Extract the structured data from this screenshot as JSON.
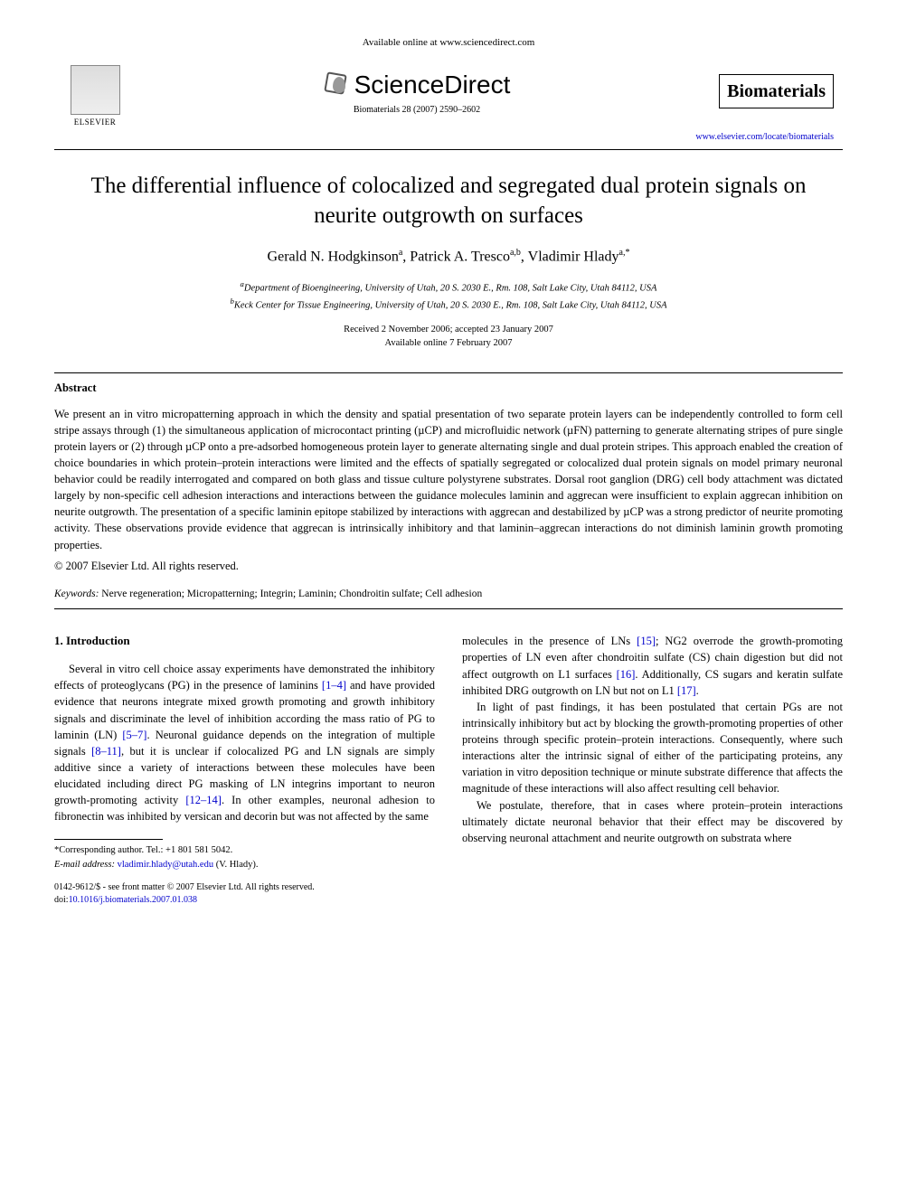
{
  "header": {
    "available_online": "Available online at www.sciencedirect.com",
    "sciencedirect": "ScienceDirect",
    "elsevier": "ELSEVIER",
    "citation": "Biomaterials 28 (2007) 2590–2602",
    "journal_name": "Biomaterials",
    "journal_url": "www.elsevier.com/locate/biomaterials"
  },
  "title": "The differential influence of colocalized and segregated dual protein signals on neurite outgrowth on surfaces",
  "authors_html": "Gerald N. Hodgkinson",
  "author1": "Gerald N. Hodgkinson",
  "author1_sup": "a",
  "author2": "Patrick A. Tresco",
  "author2_sup": "a,b",
  "author3": "Vladimir Hlady",
  "author3_sup": "a,*",
  "affiliations": {
    "a": "Department of Bioengineering, University of Utah, 20 S. 2030 E., Rm. 108, Salt Lake City, Utah 84112, USA",
    "b": "Keck Center for Tissue Engineering, University of Utah, 20 S. 2030 E., Rm. 108, Salt Lake City, Utah 84112, USA"
  },
  "dates": {
    "received_accepted": "Received 2 November 2006; accepted 23 January 2007",
    "online": "Available online 7 February 2007"
  },
  "abstract": {
    "heading": "Abstract",
    "body": "We present an in vitro micropatterning approach in which the density and spatial presentation of two separate protein layers can be independently controlled to form cell stripe assays through (1) the simultaneous application of microcontact printing (µCP) and microfluidic network (µFN) patterning to generate alternating stripes of pure single protein layers or (2) through µCP onto a pre-adsorbed homogeneous protein layer to generate alternating single and dual protein stripes. This approach enabled the creation of choice boundaries in which protein–protein interactions were limited and the effects of spatially segregated or colocalized dual protein signals on model primary neuronal behavior could be readily interrogated and compared on both glass and tissue culture polystyrene substrates. Dorsal root ganglion (DRG) cell body attachment was dictated largely by non-specific cell adhesion interactions and interactions between the guidance molecules laminin and aggrecan were insufficient to explain aggrecan inhibition on neurite outgrowth. The presentation of a specific laminin epitope stabilized by interactions with aggrecan and destabilized by µCP was a strong predictor of neurite promoting activity. These observations provide evidence that aggrecan is intrinsically inhibitory and that laminin–aggrecan interactions do not diminish laminin growth promoting properties.",
    "copyright": "© 2007 Elsevier Ltd. All rights reserved."
  },
  "keywords": {
    "label": "Keywords:",
    "list": "Nerve regeneration; Micropatterning; Integrin; Laminin; Chondroitin sulfate; Cell adhesion"
  },
  "intro": {
    "heading": "1. Introduction",
    "p1a": "Several in vitro cell choice assay experiments have demonstrated the inhibitory effects of proteoglycans (PG) in the presence of laminins ",
    "c1": "[1–4]",
    "p1b": " and have provided evidence that neurons integrate mixed growth promoting and growth inhibitory signals and discriminate the level of inhibition according the mass ratio of PG to laminin (LN) ",
    "c2": "[5–7]",
    "p1c": ". Neuronal guidance depends on the integration of multiple signals ",
    "c3": "[8–11]",
    "p1d": ", but it is unclear if colocalized PG and LN signals are simply additive since a variety of interactions between these molecules have been elucidated including direct PG masking of LN integrins important to neuron growth-promoting activity ",
    "c4": "[12–14]",
    "p1e": ". In other examples, neuronal adhesion to fibronectin was inhibited by versican and decorin but was not affected by the same",
    "p2a": "molecules in the presence of LNs ",
    "c5": "[15]",
    "p2b": "; NG2 overrode the growth-promoting properties of LN even after chondroitin sulfate (CS) chain digestion but did not affect outgrowth on L1 surfaces ",
    "c6": "[16]",
    "p2c": ". Additionally, CS sugars and keratin sulfate inhibited DRG outgrowth on LN but not on L1 ",
    "c7": "[17]",
    "p2d": ".",
    "p3": "In light of past findings, it has been postulated that certain PGs are not intrinsically inhibitory but act by blocking the growth-promoting properties of other proteins through specific protein–protein interactions. Consequently, where such interactions alter the intrinsic signal of either of the participating proteins, any variation in vitro deposition technique or minute substrate difference that affects the magnitude of these interactions will also affect resulting cell behavior.",
    "p4": "We postulate, therefore, that in cases where protein–protein interactions ultimately dictate neuronal behavior that their effect may be discovered by observing neuronal attachment and neurite outgrowth on substrata where"
  },
  "corresponding": {
    "label": "*Corresponding author. Tel.: +1 801 581 5042.",
    "email_label": "E-mail address:",
    "email": "vladimir.hlady@utah.edu",
    "email_suffix": "(V. Hlady)."
  },
  "footer": {
    "front_matter": "0142-9612/$ - see front matter © 2007 Elsevier Ltd. All rights reserved.",
    "doi_label": "doi:",
    "doi": "10.1016/j.biomaterials.2007.01.038"
  },
  "colors": {
    "link": "#0000cc",
    "text": "#000000",
    "background": "#ffffff"
  }
}
